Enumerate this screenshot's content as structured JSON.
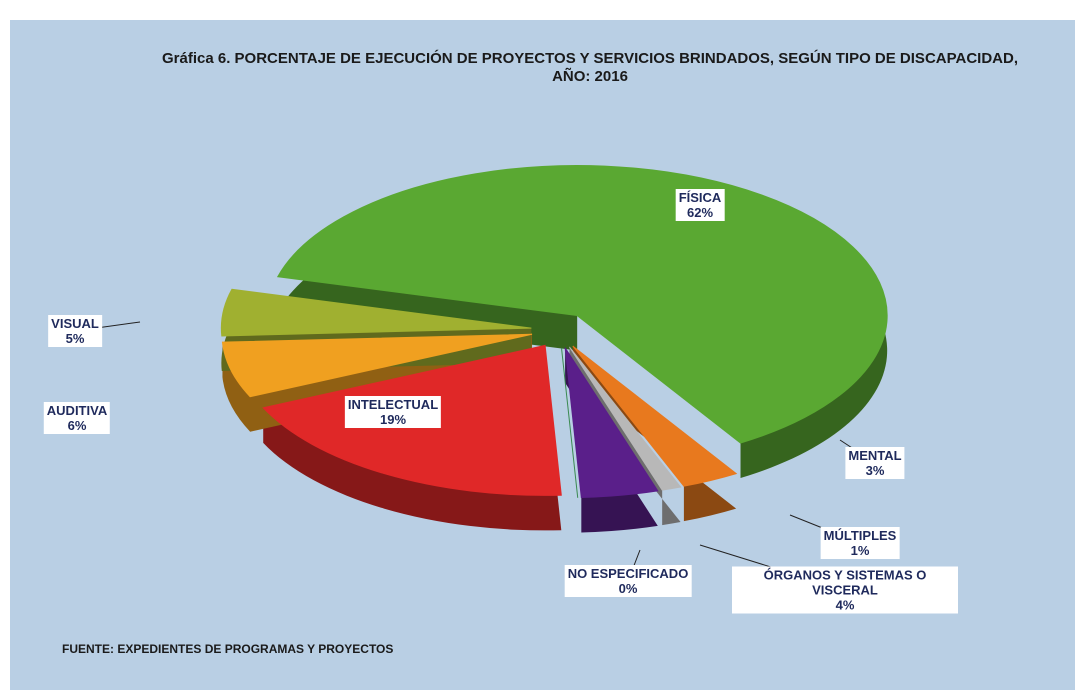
{
  "chart_data": {
    "type": "pie",
    "title": "Gráfica 6. PORCENTAJE DE EJECUCIÓN DE PROYECTOS Y SERVICIOS BRINDADOS, SEGÚN TIPO DE DISCAPACIDAD, AÑO: 2016",
    "categories": [
      "FÍSICA",
      "MENTAL",
      "MÚLTIPLES",
      "ÓRGANOS Y SISTEMAS O VISCERAL",
      "NO ESPECIFICADO",
      "INTELECTUAL",
      "AUDITIVA",
      "VISUAL"
    ],
    "values": [
      62,
      3,
      1,
      4,
      0,
      19,
      6,
      5
    ],
    "value_labels": [
      "62%",
      "3%",
      "1%",
      "4%",
      "0%",
      "19%",
      "6%",
      "5%"
    ],
    "colors": [
      "#5aa832",
      "#e8791e",
      "#b8b8b8",
      "#5a1f8a",
      "#3a8a50",
      "#e02828",
      "#f0a020",
      "#a0b030"
    ],
    "source": "FUENTE: EXPEDIENTES DE PROGRAMAS Y PROYECTOS"
  }
}
